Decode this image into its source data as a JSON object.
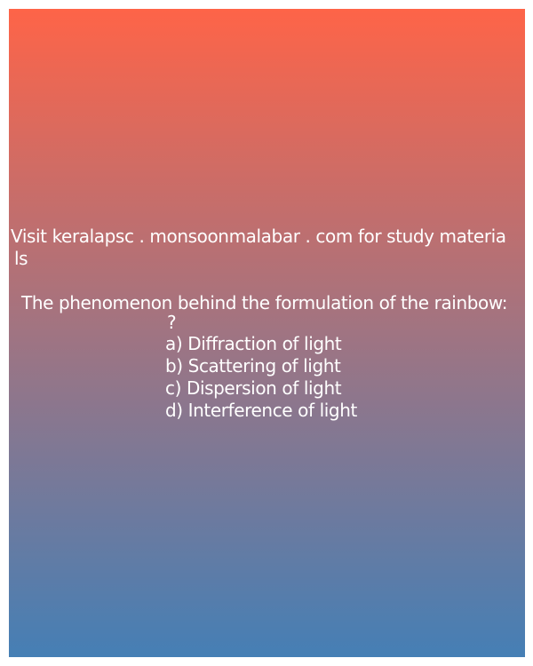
{
  "promo": {
    "line1": "Visit keralapsc . monsoonmalabar . com for study materia",
    "line2": "ls"
  },
  "question": {
    "text": "The phenomenon behind the formulation of the rainbow:",
    "mark": "?"
  },
  "options": [
    "a) Diffraction of light",
    "b) Scattering of light",
    "c) Dispersion of light",
    "d) Interference of light"
  ],
  "colors": {
    "gradient_top": "#fe6448",
    "gradient_middle": "#a07482",
    "gradient_bottom": "#457fb5",
    "text": "#ffffff"
  }
}
